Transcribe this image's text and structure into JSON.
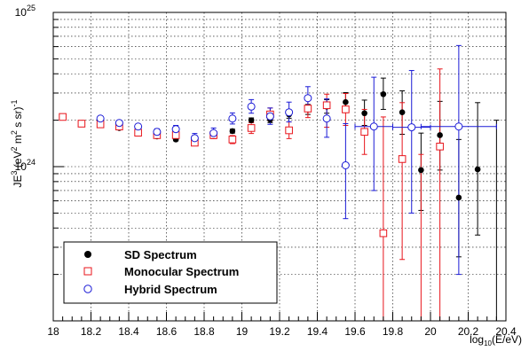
{
  "chart_data": {
    "type": "scatter",
    "title": "",
    "xlabel": {
      "prefix": "log",
      "sub": "10",
      "suffix": "(E/eV)"
    },
    "ylabel": {
      "a": "JE",
      "a_sup": "3",
      "b": " (eV",
      "b_sup": "2",
      "c": " m",
      "c_sup": "2",
      "d": " s sr)",
      "d_sup": "-1"
    },
    "xlim": [
      18,
      20.4
    ],
    "ylim": [
      1e+23,
      1e+25
    ],
    "ylog": true,
    "grid": true,
    "x_ticks": [
      "18",
      "18.2",
      "18.4",
      "18.6",
      "18.8",
      "19",
      "19.2",
      "19.4",
      "19.6",
      "19.8",
      "20",
      "20.2",
      "20.4"
    ],
    "y_ticks": [
      {
        "value": 1e+24,
        "base": "10",
        "exp": "24"
      },
      {
        "value": 1e+25,
        "base": "10",
        "exp": "25"
      }
    ],
    "legend_position": "bottom-left",
    "series": [
      {
        "name": "SD Spectrum",
        "marker": "filled-circle",
        "color": "#000000",
        "points": [
          {
            "x": 18.25,
            "y": 1.9e+24,
            "lo": 1.87e+24,
            "hi": 1.93e+24
          },
          {
            "x": 18.35,
            "y": 1.78e+24,
            "lo": 1.75e+24,
            "hi": 1.81e+24
          },
          {
            "x": 18.45,
            "y": 1.65e+24,
            "lo": 1.62e+24,
            "hi": 1.68e+24
          },
          {
            "x": 18.55,
            "y": 1.57e+24,
            "lo": 1.54e+24,
            "hi": 1.6e+24
          },
          {
            "x": 18.65,
            "y": 1.5e+24,
            "lo": 1.47e+24,
            "hi": 1.53e+24
          },
          {
            "x": 18.75,
            "y": 1.48e+24,
            "lo": 1.45e+24,
            "hi": 1.52e+24
          },
          {
            "x": 18.85,
            "y": 1.58e+24,
            "lo": 1.54e+24,
            "hi": 1.62e+24
          },
          {
            "x": 18.95,
            "y": 1.7e+24,
            "lo": 1.65e+24,
            "hi": 1.75e+24
          },
          {
            "x": 19.05,
            "y": 2e+24,
            "lo": 1.93e+24,
            "hi": 2.07e+24
          },
          {
            "x": 19.15,
            "y": 2.02e+24,
            "lo": 1.93e+24,
            "hi": 2.12e+24
          },
          {
            "x": 19.25,
            "y": 2.18e+24,
            "lo": 2.06e+24,
            "hi": 2.32e+24
          },
          {
            "x": 19.35,
            "y": 2.35e+24,
            "lo": 2.18e+24,
            "hi": 2.53e+24
          },
          {
            "x": 19.45,
            "y": 2.45e+24,
            "lo": 2.22e+24,
            "hi": 2.72e+24
          },
          {
            "x": 19.55,
            "y": 2.62e+24,
            "lo": 2.3e+24,
            "hi": 3.02e+24
          },
          {
            "x": 19.65,
            "y": 2.22e+24,
            "lo": 1.85e+24,
            "hi": 2.7e+24
          },
          {
            "x": 19.75,
            "y": 2.95e+24,
            "lo": 2.35e+24,
            "hi": 3.75e+24
          },
          {
            "x": 19.85,
            "y": 2.25e+24,
            "lo": 1.62e+24,
            "hi": 3.1e+24
          },
          {
            "x": 19.95,
            "y": 9.5e+23,
            "lo": 5.2e+23,
            "hi": 1.65e+24
          },
          {
            "x": 20.05,
            "y": 1.6e+24,
            "lo": 9.5e+23,
            "hi": 2.65e+24
          },
          {
            "x": 20.15,
            "y": 6.3e+23,
            "lo": 2.6e+23,
            "hi": 1.5e+24
          },
          {
            "x": 20.25,
            "y": 9.6e+23,
            "lo": 3.6e+23,
            "hi": 2.6e+24
          },
          {
            "x": 20.35,
            "y": null,
            "lo": 1e+23,
            "hi": 2e+24
          }
        ]
      },
      {
        "name": "Monocular Spectrum",
        "marker": "open-square",
        "color": "#e8141b",
        "points": [
          {
            "x": 18.05,
            "y": 2.1e+24,
            "lo": 2.06e+24,
            "hi": 2.14e+24
          },
          {
            "x": 18.15,
            "y": 1.9e+24,
            "lo": 1.86e+24,
            "hi": 1.94e+24
          },
          {
            "x": 18.25,
            "y": 1.88e+24,
            "lo": 1.84e+24,
            "hi": 1.92e+24
          },
          {
            "x": 18.35,
            "y": 1.82e+24,
            "lo": 1.77e+24,
            "hi": 1.87e+24
          },
          {
            "x": 18.45,
            "y": 1.66e+24,
            "lo": 1.61e+24,
            "hi": 1.71e+24
          },
          {
            "x": 18.55,
            "y": 1.6e+24,
            "lo": 1.55e+24,
            "hi": 1.65e+24
          },
          {
            "x": 18.65,
            "y": 1.6e+24,
            "lo": 1.54e+24,
            "hi": 1.66e+24
          },
          {
            "x": 18.75,
            "y": 1.43e+24,
            "lo": 1.37e+24,
            "hi": 1.49e+24
          },
          {
            "x": 18.85,
            "y": 1.6e+24,
            "lo": 1.52e+24,
            "hi": 1.68e+24
          },
          {
            "x": 18.95,
            "y": 1.5e+24,
            "lo": 1.41e+24,
            "hi": 1.59e+24
          },
          {
            "x": 19.05,
            "y": 1.78e+24,
            "lo": 1.64e+24,
            "hi": 1.93e+24
          },
          {
            "x": 19.15,
            "y": 2.18e+24,
            "lo": 1.98e+24,
            "hi": 2.4e+24
          },
          {
            "x": 19.25,
            "y": 1.72e+24,
            "lo": 1.52e+24,
            "hi": 1.95e+24
          },
          {
            "x": 19.35,
            "y": 2.38e+24,
            "lo": 2.08e+24,
            "hi": 2.72e+24
          },
          {
            "x": 19.45,
            "y": 2.5e+24,
            "lo": 1.8e+24,
            "hi": 2.95e+24
          },
          {
            "x": 19.55,
            "y": 2.35e+24,
            "lo": 1.85e+24,
            "hi": 2.98e+24
          },
          {
            "x": 19.65,
            "y": 1.68e+24,
            "lo": 1.2e+24,
            "hi": 2.35e+24
          },
          {
            "x": 19.75,
            "y": 3.7e+23,
            "lo": 1e+23,
            "hi": 2.1e+24
          },
          {
            "x": 19.85,
            "y": 1.12e+24,
            "lo": 2.5e+23,
            "hi": 2.6e+24
          },
          {
            "x": 19.95,
            "y": null,
            "lo": 1e+23,
            "hi": 1.2e+24
          },
          {
            "x": 20.05,
            "y": 1.35e+24,
            "lo": 1e+23,
            "hi": 4.3e+24
          }
        ]
      },
      {
        "name": "Hybrid Spectrum",
        "marker": "open-circle",
        "color": "#1a1ad6",
        "points": [
          {
            "x": 18.25,
            "y": 2.05e+24,
            "lo": 1.99e+24,
            "hi": 2.11e+24
          },
          {
            "x": 18.35,
            "y": 1.92e+24,
            "lo": 1.86e+24,
            "hi": 1.98e+24
          },
          {
            "x": 18.45,
            "y": 1.82e+24,
            "lo": 1.75e+24,
            "hi": 1.89e+24
          },
          {
            "x": 18.55,
            "y": 1.68e+24,
            "lo": 1.6e+24,
            "hi": 1.76e+24
          },
          {
            "x": 18.65,
            "y": 1.75e+24,
            "lo": 1.66e+24,
            "hi": 1.85e+24
          },
          {
            "x": 18.75,
            "y": 1.53e+24,
            "lo": 1.43e+24,
            "hi": 1.64e+24
          },
          {
            "x": 18.85,
            "y": 1.65e+24,
            "lo": 1.53e+24,
            "hi": 1.78e+24
          },
          {
            "x": 18.95,
            "y": 2.05e+24,
            "lo": 1.89e+24,
            "hi": 2.23e+24
          },
          {
            "x": 19.05,
            "y": 2.45e+24,
            "lo": 2.22e+24,
            "hi": 2.72e+24
          },
          {
            "x": 19.15,
            "y": 2.12e+24,
            "lo": 1.88e+24,
            "hi": 2.4e+24
          },
          {
            "x": 19.25,
            "y": 2.25e+24,
            "lo": 1.95e+24,
            "hi": 2.62e+24
          },
          {
            "x": 19.35,
            "y": 2.78e+24,
            "lo": 2.35e+24,
            "hi": 3.3e+24
          },
          {
            "x": 19.45,
            "y": 2.05e+24,
            "lo": 1.55e+24,
            "hi": 2.75e+24
          },
          {
            "x": 19.55,
            "y": 1.02e+24,
            "lo": 4.6e+23,
            "hi": 1.9e+24
          },
          {
            "x": 19.7,
            "y": 1.82e+24,
            "lo": 7e+23,
            "hi": 3.8e+24,
            "xlo": 19.6,
            "xhi": 19.8
          },
          {
            "x": 19.9,
            "y": 1.8e+24,
            "lo": 5e+23,
            "hi": 4.2e+24,
            "xlo": 19.8,
            "xhi": 20.0
          },
          {
            "x": 20.15,
            "y": 1.82e+24,
            "lo": 2e+23,
            "hi": 6.1e+24,
            "xlo": 19.95,
            "xhi": 20.35
          }
        ]
      }
    ]
  }
}
